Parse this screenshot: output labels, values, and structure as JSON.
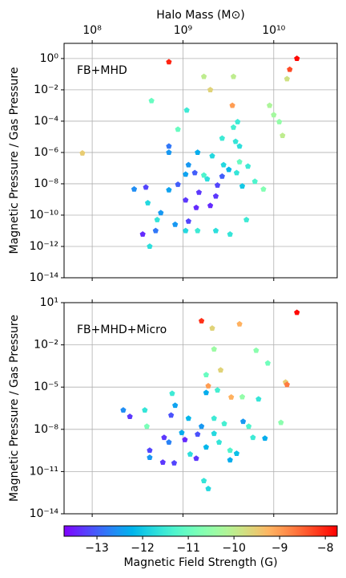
{
  "chart_data": [
    {
      "type": "scatter",
      "xlabel": "Halo Mass (M⊙)",
      "ylabel": "Magnetic Pressure / Gas Pressure",
      "annotation": "FB+MHD",
      "xscale": "log",
      "yscale": "log",
      "grid": true,
      "marker": "pentagon",
      "colormap": "rainbow",
      "show_xtick_labels": true,
      "xlim": [
        49000000.0,
        50000000000.0
      ],
      "xticks": [
        {
          "value": 100000000.0,
          "label": "10⁸"
        },
        {
          "value": 1000000000.0,
          "label": "10⁹"
        },
        {
          "value": 10000000000.0,
          "label": "10¹⁰"
        }
      ],
      "ylim": [
        1e-14,
        9.3
      ],
      "yticks": [
        {
          "value": 1,
          "label": "10⁰"
        },
        {
          "value": 0.01,
          "label": "10⁻²"
        },
        {
          "value": 0.0001,
          "label": "10⁻⁴"
        },
        {
          "value": 1e-06,
          "label": "10⁻⁶"
        },
        {
          "value": 1e-08,
          "label": "10⁻⁸"
        },
        {
          "value": 1e-10,
          "label": "10⁻¹⁰"
        },
        {
          "value": 1e-12,
          "label": "10⁻¹²"
        },
        {
          "value": 1e-14,
          "label": "10⁻¹⁴"
        }
      ],
      "x": [
        78000000.0,
        700000000.0,
        18000000000.0,
        15000000000.0,
        14000000000.0,
        1700000000.0,
        3600000000.0,
        2000000000.0,
        450000000.0,
        1100000000.0,
        3500000000.0,
        9000000000.0,
        10000000000.0,
        11500000000.0,
        4000000000.0,
        3600000000.0,
        12500000000.0,
        880000000.0,
        2700000000.0,
        3800000000.0,
        4200000000.0,
        700000000.0,
        700000000.0,
        1450000000.0,
        2100000000.0,
        1150000000.0,
        2800000000.0,
        1350000000.0,
        3900000000.0,
        5200000000.0,
        1850000000.0,
        2400000000.0,
        880000000.0,
        1500000000.0,
        4500000000.0,
        7700000000.0,
        6200000000.0,
        290000000.0,
        390000000.0,
        700000000.0,
        410000000.0,
        1070000000.0,
        2000000000.0,
        1150000000.0,
        570000000.0,
        820000000.0,
        5000000000.0,
        520000000.0,
        360000000.0,
        500000000.0,
        1070000000.0,
        1450000000.0,
        2300000000.0,
        3300000000.0,
        430000000.0,
        1700000000.0,
        3200000000.0,
        1070000000.0,
        2300000000.0,
        1400000000.0,
        4200000000.0,
        2700000000.0
      ],
      "y": [
        9e-07,
        0.6,
        1,
        0.2,
        0.05,
        0.07,
        0.07,
        0.01,
        0.002,
        0.0005,
        0.001,
        0.001,
        0.00025,
        9e-05,
        9e-05,
        4e-05,
        1.2e-05,
        3e-05,
        8e-06,
        5e-06,
        2.5e-06,
        2.5e-06,
        1e-06,
        1e-06,
        6e-07,
        1.6e-07,
        1.6e-07,
        5e-08,
        5e-08,
        1.3e-07,
        2e-08,
        8e-09,
        9e-09,
        2.8e-09,
        7e-09,
        4.5e-09,
        1.4e-08,
        4.5e-09,
        6e-09,
        4e-09,
        6e-10,
        9e-10,
        4e-10,
        4e-11,
        1.4e-10,
        2.5e-11,
        5e-11,
        5e-11,
        6e-12,
        1e-11,
        1e-11,
        1e-11,
        1e-11,
        6e-12,
        1e-12,
        3.5e-08,
        8e-08,
        4e-08,
        1.6e-09,
        3e-10,
        2.5e-07,
        3e-08
      ],
      "c": [
        -9.5,
        -8,
        -7.8,
        -8.3,
        -9.8,
        -10,
        -10,
        -9.6,
        -11,
        -11.5,
        -9,
        -10.2,
        -10.3,
        -10.5,
        -11.5,
        -11.4,
        -10,
        -11,
        -11.5,
        -11.6,
        -11.7,
        -12.8,
        -12.5,
        -12.3,
        -11.8,
        -12.5,
        -11.8,
        -13,
        -11.6,
        -11.5,
        -11.7,
        -13.2,
        -13,
        -13.3,
        -12,
        -10.7,
        -11.3,
        -12.6,
        -13.2,
        -12.4,
        -11.8,
        -13.3,
        -13.4,
        -13.2,
        -12.5,
        -12.5,
        -11.5,
        -11.6,
        -13.4,
        -12.8,
        -11.8,
        -11.5,
        -11.7,
        -11.6,
        -11.7,
        -11.3,
        -12.2,
        -12.4,
        -13.3,
        -13.4,
        -11,
        -13
      ]
    },
    {
      "type": "scatter",
      "ylabel": "Magnetic Pressure / Gas Pressure",
      "annotation": "FB+MHD+Micro",
      "xscale": "log",
      "yscale": "log",
      "grid": true,
      "marker": "pentagon",
      "colormap": "rainbow",
      "show_xtick_labels": false,
      "xlim": [
        49000000.0,
        50000000000.0
      ],
      "xticks": [
        100000000.0,
        1000000000.0,
        10000000000.0
      ],
      "ylim": [
        1e-14,
        10
      ],
      "yticks": [
        {
          "value": 10,
          "label": "10¹"
        },
        {
          "value": 0.01,
          "label": "10⁻²"
        },
        {
          "value": 1e-05,
          "label": "10⁻⁵"
        },
        {
          "value": 1e-08,
          "label": "10⁻⁸"
        },
        {
          "value": 1e-11,
          "label": "10⁻¹¹"
        },
        {
          "value": 1e-14,
          "label": "10⁻¹⁴"
        }
      ],
      "x": [
        18000000000.0,
        1600000000.0,
        4200000000.0,
        2100000000.0,
        2200000000.0,
        6400000000.0,
        2600000000.0,
        8600000000.0,
        1800000000.0,
        13500000000.0,
        14000000000.0,
        1900000000.0,
        2400000000.0,
        760000000.0,
        1800000000.0,
        3400000000.0,
        4500000000.0,
        6800000000.0,
        12000000000.0,
        220000000.0,
        380000000.0,
        260000000.0,
        400000000.0,
        820000000.0,
        740000000.0,
        1150000000.0,
        2200000000.0,
        4600000000.0,
        2850000000.0,
        1600000000.0,
        5300000000.0,
        970000000.0,
        1450000000.0,
        2200000000.0,
        8000000000.0,
        5900000000.0,
        620000000.0,
        1050000000.0,
        700000000.0,
        2500000000.0,
        430000000.0,
        1800000000.0,
        3300000000.0,
        3900000000.0,
        1200000000.0,
        430000000.0,
        600000000.0,
        800000000.0,
        1400000000.0,
        3300000000.0,
        1700000000.0,
        1900000000.0
      ],
      "y": [
        2,
        0.5,
        0.3,
        0.15,
        0.005,
        0.004,
        0.00016,
        0.0005,
        7.4e-05,
        2.2e-05,
        1.5e-05,
        1.2e-05,
        6e-06,
        3.5e-06,
        4e-06,
        1.9e-06,
        2e-06,
        1.4e-06,
        3e-08,
        2.3e-07,
        2.3e-07,
        8e-08,
        1.6e-08,
        5e-07,
        1e-07,
        6e-08,
        6e-08,
        3.6e-08,
        2.5e-08,
        1.6e-08,
        1.6e-08,
        5.7e-09,
        4.4e-09,
        5e-09,
        2.3e-09,
        2.6e-09,
        2.6e-09,
        1.8e-09,
        1.2e-09,
        1.2e-09,
        3.2e-10,
        5.4e-10,
        3.2e-10,
        1.9e-10,
        1.7e-10,
        1e-10,
        4.5e-11,
        4e-11,
        8.5e-11,
        6.6e-11,
        2.2e-12,
        6e-13
      ],
      "c": [
        -7.8,
        -8.1,
        -9.2,
        -9.6,
        -10.4,
        -10.6,
        -9.6,
        -10.9,
        -11,
        -9.5,
        -8.7,
        -9,
        -11.4,
        -11.5,
        -12.3,
        -9.2,
        -10.5,
        -11.6,
        -10.6,
        -12.6,
        -11.6,
        -13.3,
        -10.8,
        -12.4,
        -13.1,
        -12.2,
        -11.5,
        -12.5,
        -11.4,
        -12.5,
        -11.3,
        -12.3,
        -13.1,
        -11.8,
        -12.3,
        -11.5,
        -13.3,
        -13.4,
        -12.7,
        -11.6,
        -13.2,
        -12.2,
        -11.3,
        -12.1,
        -11.7,
        -12.5,
        -13.3,
        -13.2,
        -13.3,
        -12.3,
        -11.6,
        -11.8
      ],
      "clabel": "Magnetic Field Strength (G)",
      "clim": [
        -13.72,
        -7.74
      ],
      "cticks": [
        {
          "value": -13,
          "label": "−13"
        },
        {
          "value": -12,
          "label": "−12"
        },
        {
          "value": -11,
          "label": "−11"
        },
        {
          "value": -10,
          "label": "−10"
        },
        {
          "value": -9,
          "label": "−9"
        },
        {
          "value": -8,
          "label": "−8"
        }
      ]
    }
  ]
}
